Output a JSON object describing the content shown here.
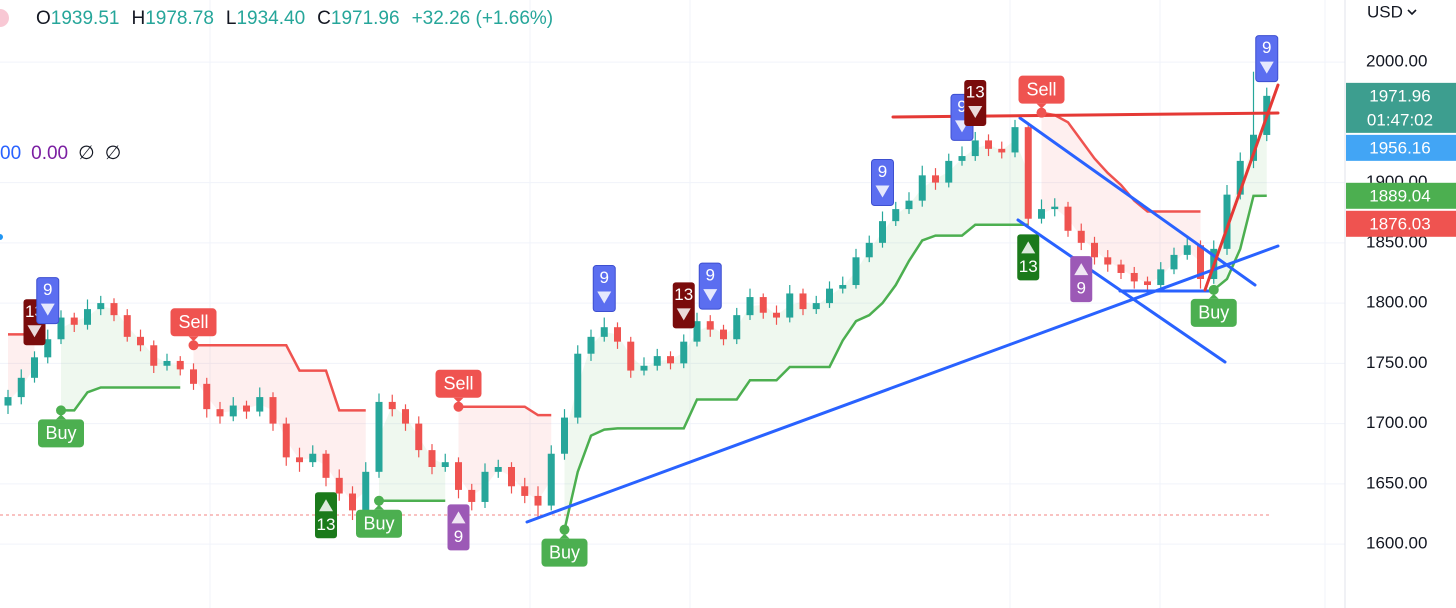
{
  "chart_data": {
    "type": "candlestick",
    "legend": [
      {
        "key": "O",
        "value": "1939.51"
      },
      {
        "key": "H",
        "value": "1978.78"
      },
      {
        "key": "L",
        "value": "1934.40"
      },
      {
        "key": "C",
        "value": "1971.96"
      }
    ],
    "change": "+32.26 (+1.66%)",
    "indicator_values": [
      {
        "text": "00",
        "color": "#2962ff"
      },
      {
        "text": "0.00",
        "color": "#7b1fa2"
      },
      {
        "text": "∅",
        "color": "#131722"
      },
      {
        "text": "∅",
        "color": "#131722"
      }
    ],
    "currency": "USD",
    "up_color": "#26a69a",
    "down_color": "#ef5350",
    "ylim": [
      1547,
      2051.5
    ],
    "yticks": [
      {
        "value": 1600,
        "label": "1600.00"
      },
      {
        "value": 1650,
        "label": "1650.00"
      },
      {
        "value": 1700,
        "label": "1700.00"
      },
      {
        "value": 1750,
        "label": "1750.00"
      },
      {
        "value": 1800,
        "label": "1800.00"
      },
      {
        "value": 1850,
        "label": "1850.00"
      },
      {
        "value": 1900,
        "label": "1900.00"
      },
      {
        "value": 2000,
        "label": "2000.00"
      }
    ],
    "grid": true,
    "open": [
      1715,
      1722,
      1738,
      1755,
      1770,
      1788,
      1782,
      1795,
      1800,
      1790,
      1772,
      1765,
      1748,
      1752,
      1745,
      1733,
      1712,
      1706,
      1715,
      1710,
      1722,
      1700,
      1672,
      1668,
      1675,
      1655,
      1642,
      1628,
      1660,
      1718,
      1712,
      1700,
      1678,
      1664,
      1668,
      1645,
      1635,
      1660,
      1664,
      1648,
      1640,
      1632,
      1675,
      1705,
      1758,
      1772,
      1780,
      1768,
      1744,
      1748,
      1756,
      1750,
      1768,
      1785,
      1778,
      1770,
      1790,
      1805,
      1792,
      1788,
      1808,
      1795,
      1800,
      1812,
      1815,
      1838,
      1850,
      1868,
      1878,
      1885,
      1906,
      1900,
      1918,
      1922,
      1935,
      1928,
      1925,
      1946,
      1870,
      1878,
      1880,
      1860,
      1850,
      1838,
      1832,
      1825,
      1818,
      1815,
      1828,
      1840,
      1848,
      1820,
      1845,
      1890,
      1918,
      1939.51
    ],
    "high": [
      1728,
      1745,
      1760,
      1778,
      1794,
      1792,
      1803,
      1806,
      1804,
      1795,
      1778,
      1769,
      1758,
      1756,
      1750,
      1738,
      1718,
      1722,
      1719,
      1730,
      1726,
      1705,
      1680,
      1682,
      1678,
      1662,
      1648,
      1668,
      1725,
      1724,
      1716,
      1706,
      1683,
      1675,
      1672,
      1650,
      1667,
      1670,
      1668,
      1655,
      1648,
      1682,
      1712,
      1765,
      1778,
      1788,
      1784,
      1772,
      1755,
      1762,
      1760,
      1774,
      1792,
      1790,
      1782,
      1796,
      1812,
      1808,
      1798,
      1815,
      1812,
      1806,
      1818,
      1822,
      1845,
      1856,
      1876,
      1884,
      1892,
      1914,
      1912,
      1924,
      1930,
      1942,
      1940,
      1934,
      1952,
      1950,
      1886,
      1887,
      1884,
      1866,
      1855,
      1844,
      1836,
      1830,
      1822,
      1834,
      1846,
      1855,
      1852,
      1852,
      1898,
      1925,
      1992,
      1978.78
    ],
    "low": [
      1708,
      1716,
      1734,
      1750,
      1766,
      1776,
      1778,
      1790,
      1785,
      1768,
      1760,
      1742,
      1744,
      1740,
      1728,
      1705,
      1700,
      1702,
      1704,
      1706,
      1694,
      1665,
      1660,
      1664,
      1648,
      1636,
      1620,
      1624,
      1655,
      1706,
      1694,
      1672,
      1658,
      1660,
      1638,
      1628,
      1630,
      1655,
      1642,
      1634,
      1622,
      1628,
      1670,
      1700,
      1752,
      1768,
      1762,
      1738,
      1740,
      1744,
      1745,
      1746,
      1764,
      1772,
      1765,
      1766,
      1786,
      1787,
      1782,
      1784,
      1790,
      1791,
      1796,
      1808,
      1812,
      1834,
      1846,
      1864,
      1874,
      1880,
      1894,
      1896,
      1914,
      1918,
      1922,
      1920,
      1921,
      1862,
      1866,
      1872,
      1855,
      1844,
      1832,
      1826,
      1820,
      1812,
      1808,
      1810,
      1824,
      1836,
      1812,
      1816,
      1840,
      1886,
      1912,
      1934.4
    ],
    "close": [
      1722,
      1738,
      1755,
      1770,
      1788,
      1782,
      1795,
      1800,
      1790,
      1772,
      1765,
      1748,
      1752,
      1745,
      1733,
      1712,
      1706,
      1715,
      1710,
      1722,
      1700,
      1672,
      1668,
      1675,
      1655,
      1642,
      1628,
      1660,
      1718,
      1712,
      1700,
      1678,
      1664,
      1668,
      1645,
      1635,
      1660,
      1664,
      1648,
      1640,
      1632,
      1675,
      1705,
      1758,
      1772,
      1780,
      1768,
      1744,
      1748,
      1756,
      1750,
      1768,
      1785,
      1778,
      1770,
      1790,
      1805,
      1792,
      1788,
      1808,
      1795,
      1800,
      1812,
      1815,
      1838,
      1850,
      1868,
      1878,
      1885,
      1906,
      1900,
      1918,
      1922,
      1935,
      1928,
      1925,
      1946,
      1870,
      1878,
      1880,
      1860,
      1850,
      1838,
      1832,
      1825,
      1818,
      1815,
      1828,
      1840,
      1848,
      1820,
      1845,
      1890,
      1918,
      1939.7,
      1971.96
    ],
    "supertrend": {
      "up_color": "#4caf50",
      "down_color": "#ef5350",
      "up": [
        null,
        null,
        null,
        null,
        1711,
        1711,
        1726,
        1730,
        1730,
        1730,
        1730,
        1730,
        1730,
        1730,
        null,
        null,
        null,
        null,
        null,
        null,
        null,
        null,
        null,
        null,
        null,
        null,
        null,
        null,
        1636,
        1636,
        1636,
        1636,
        1636,
        1636,
        null,
        null,
        null,
        null,
        null,
        null,
        null,
        null,
        1612,
        1660,
        1690,
        1695,
        1696,
        1696,
        1696,
        1696,
        1696,
        1696,
        1720,
        1720,
        1720,
        1720,
        1736,
        1736,
        1736,
        1747,
        1747,
        1747,
        1747,
        1769,
        1785,
        1790,
        1800,
        1815,
        1835,
        1852,
        1856,
        1856,
        1856,
        1865,
        1865,
        1865,
        1865,
        1865,
        null,
        null,
        null,
        null,
        null,
        null,
        null,
        null,
        null,
        null,
        null,
        null,
        null,
        1811,
        1820,
        1845,
        1889,
        1889.04
      ],
      "down": [
        1774,
        1774,
        1774,
        null,
        null,
        null,
        null,
        null,
        null,
        null,
        null,
        null,
        null,
        null,
        1765,
        1765,
        1765,
        1765,
        1765,
        1765,
        1765,
        1765,
        1744,
        1744,
        1744,
        1711,
        1711,
        1711,
        null,
        null,
        null,
        null,
        null,
        null,
        1714,
        1714,
        1714,
        1714,
        1714,
        1714,
        1707,
        1707,
        null,
        null,
        null,
        null,
        null,
        null,
        null,
        null,
        null,
        null,
        null,
        null,
        null,
        null,
        null,
        null,
        null,
        null,
        null,
        null,
        null,
        null,
        null,
        null,
        null,
        null,
        null,
        null,
        null,
        null,
        null,
        null,
        null,
        null,
        null,
        null,
        1958,
        1956,
        1950,
        1935,
        1920,
        1908,
        1898,
        1885,
        1876,
        1876,
        1876,
        1876,
        1876,
        null,
        null,
        null,
        null,
        null
      ]
    },
    "signals": [
      {
        "label": "Buy",
        "index": 4,
        "line": "up"
      },
      {
        "label": "Sell",
        "index": 14,
        "line": "down"
      },
      {
        "label": "Buy",
        "index": 28,
        "line": "up"
      },
      {
        "label": "Sell",
        "index": 34,
        "line": "down"
      },
      {
        "label": "Buy",
        "index": 42,
        "line": "up"
      },
      {
        "label": "Sell",
        "index": 78,
        "line": "down"
      },
      {
        "label": "Buy",
        "index": 91,
        "line": "up"
      }
    ],
    "counts": [
      {
        "count": 13,
        "index": 2,
        "position": "above",
        "color": "#7a0c0c"
      },
      {
        "count": 9,
        "index": 3,
        "position": "above",
        "color": "#5b6ef0"
      },
      {
        "count": 13,
        "index": 24,
        "position": "below",
        "color": "#1b7a1b"
      },
      {
        "count": 9,
        "index": 34,
        "position": "below",
        "color": "#9c59b6"
      },
      {
        "count": 9,
        "index": 45,
        "position": "above",
        "color": "#5b6ef0"
      },
      {
        "count": 13,
        "index": 51,
        "position": "above",
        "color": "#7a0c0c"
      },
      {
        "count": 9,
        "index": 53,
        "position": "above",
        "color": "#5b6ef0"
      },
      {
        "count": 9,
        "index": 66,
        "position": "above",
        "color": "#5b6ef0"
      },
      {
        "count": 9,
        "index": 72,
        "position": "above",
        "color": "#5b6ef0"
      },
      {
        "count": 13,
        "index": 73,
        "position": "above",
        "color": "#7a0c0c"
      },
      {
        "count": 13,
        "index": 77,
        "position": "below",
        "color": "#1b7a1b"
      },
      {
        "count": 9,
        "index": 81,
        "position": "below",
        "color": "#9c59b6"
      },
      {
        "count": 9,
        "index": 95,
        "position": "above",
        "color": "#5b6ef0"
      }
    ],
    "price_tags": [
      {
        "value": 1971.96,
        "color": "#3d9e8f",
        "sub": "01:47:02"
      },
      {
        "value": 1956.16,
        "color": "#42a5f5"
      },
      {
        "value": 1889.04,
        "color": "#4caf50"
      },
      {
        "value": 1876.03,
        "color": "#ef5350"
      }
    ]
  }
}
